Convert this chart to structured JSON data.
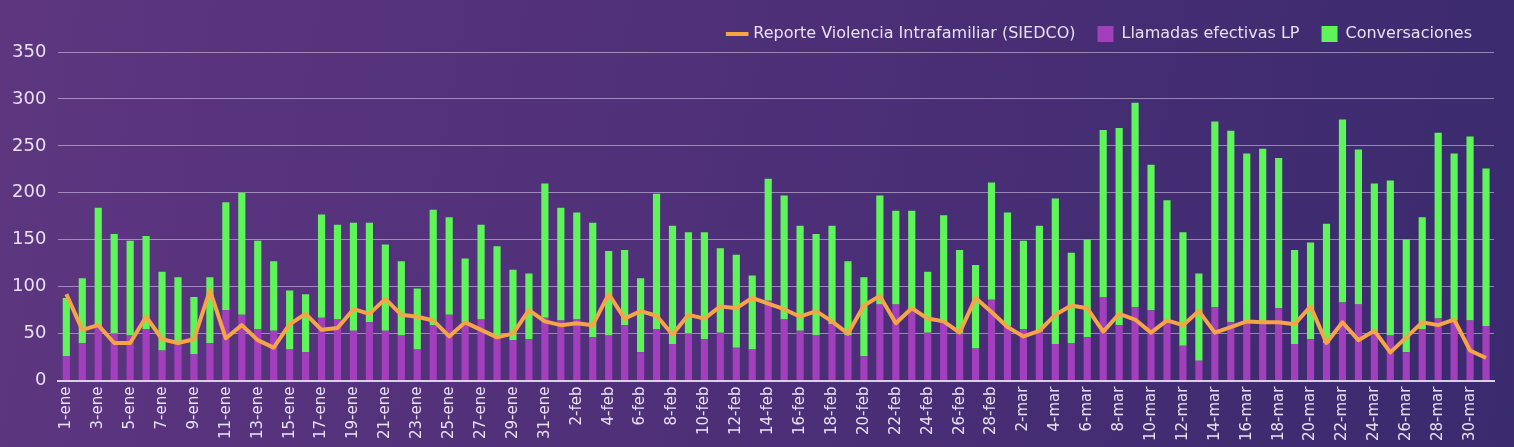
{
  "chart_data": {
    "type": "bar",
    "stacked": true,
    "grid": "y",
    "legend": "top right",
    "marker": "none",
    "ylim": [
      0,
      350
    ],
    "yticks": [
      0,
      50,
      100,
      150,
      200,
      250,
      300,
      350
    ],
    "categories": [
      "1-ene",
      null,
      "3-ene",
      null,
      "5-ene",
      null,
      "7-ene",
      null,
      "9-ene",
      null,
      "11-ene",
      null,
      "13-ene",
      null,
      "15-ene",
      null,
      "17-ene",
      null,
      "19-ene",
      null,
      "21-ene",
      null,
      "23-ene",
      null,
      "25-ene",
      null,
      "27-ene",
      null,
      "29-ene",
      null,
      "31-ene",
      null,
      "2-feb",
      null,
      "4-feb",
      null,
      "6-feb",
      null,
      "8-feb",
      null,
      "10-feb",
      null,
      "12-feb",
      null,
      "14-feb",
      null,
      "16-feb",
      null,
      "18-feb",
      null,
      "20-feb",
      null,
      "22-feb",
      null,
      "24-feb",
      null,
      "26-feb",
      null,
      "28-feb",
      null,
      "2-mar",
      null,
      "4-mar",
      null,
      "6-mar",
      null,
      "8-mar",
      null,
      "10-mar",
      null,
      "12-mar",
      null,
      "14-mar",
      null,
      "16-mar",
      null,
      "18-mar",
      null,
      "20-mar",
      null,
      "22-mar",
      null,
      "24-mar",
      null,
      "26-mar",
      null,
      "28-mar",
      null,
      "30-mar",
      null
    ],
    "series": [
      {
        "name": "Llamadas efectivas LP",
        "color": "#a23fbc",
        "values": [
          26,
          40,
          57,
          50,
          48,
          55,
          32,
          40,
          28,
          40,
          75,
          70,
          55,
          53,
          33,
          30,
          67,
          65,
          53,
          62,
          53,
          48,
          33,
          59,
          70,
          62,
          65,
          48,
          43,
          44,
          67,
          64,
          65,
          46,
          48,
          59,
          30,
          55,
          39,
          50,
          44,
          51,
          35,
          33,
          85,
          65,
          53,
          48,
          60,
          48,
          26,
          81,
          81,
          75,
          51,
          62,
          50,
          34,
          86,
          58,
          55,
          52,
          39,
          40,
          46,
          89,
          59,
          78,
          75,
          63,
          37,
          21,
          78,
          62,
          63,
          62,
          77,
          39,
          44,
          40,
          83,
          81,
          52,
          48,
          30,
          55,
          66,
          64,
          64,
          58
        ]
      },
      {
        "name": "Conversaciones",
        "color": "#5ef55a",
        "values": [
          62,
          69,
          127,
          106,
          101,
          99,
          84,
          70,
          61,
          70,
          115,
          130,
          94,
          74,
          63,
          62,
          110,
          101,
          115,
          106,
          92,
          79,
          65,
          123,
          104,
          68,
          101,
          95,
          75,
          70,
          143,
          120,
          114,
          122,
          90,
          80,
          79,
          144,
          126,
          108,
          114,
          90,
          99,
          79,
          130,
          132,
          112,
          108,
          105,
          79,
          84,
          116,
          100,
          106,
          65,
          114,
          89,
          89,
          125,
          121,
          94,
          113,
          155,
          96,
          104,
          178,
          210,
          218,
          155,
          129,
          121,
          93,
          198,
          204,
          179,
          185,
          160,
          100,
          103,
          127,
          195,
          165,
          158,
          165,
          120,
          119,
          198,
          178,
          196,
          168
        ]
      },
      {
        "name": "Reporte Violencia Intrafamiliar (SIEDCO)",
        "type": "line",
        "color": "#f5a446",
        "values": [
          92,
          54,
          59,
          40,
          40,
          68,
          44,
          40,
          44,
          96,
          45,
          59,
          43,
          35,
          60,
          71,
          54,
          56,
          76,
          71,
          87,
          70,
          68,
          64,
          47,
          62,
          54,
          46,
          50,
          75,
          63,
          59,
          61,
          59,
          92,
          66,
          74,
          69,
          49,
          70,
          66,
          79,
          77,
          88,
          82,
          76,
          68,
          74,
          63,
          50,
          80,
          90,
          61,
          77,
          66,
          63,
          51,
          88,
          73,
          57,
          47,
          53,
          70,
          80,
          77,
          52,
          71,
          65,
          51,
          64,
          59,
          74,
          51,
          57,
          63,
          62,
          62,
          60,
          79,
          40,
          62,
          43,
          53,
          30,
          46,
          62,
          59,
          65,
          32,
          24
        ]
      }
    ]
  }
}
